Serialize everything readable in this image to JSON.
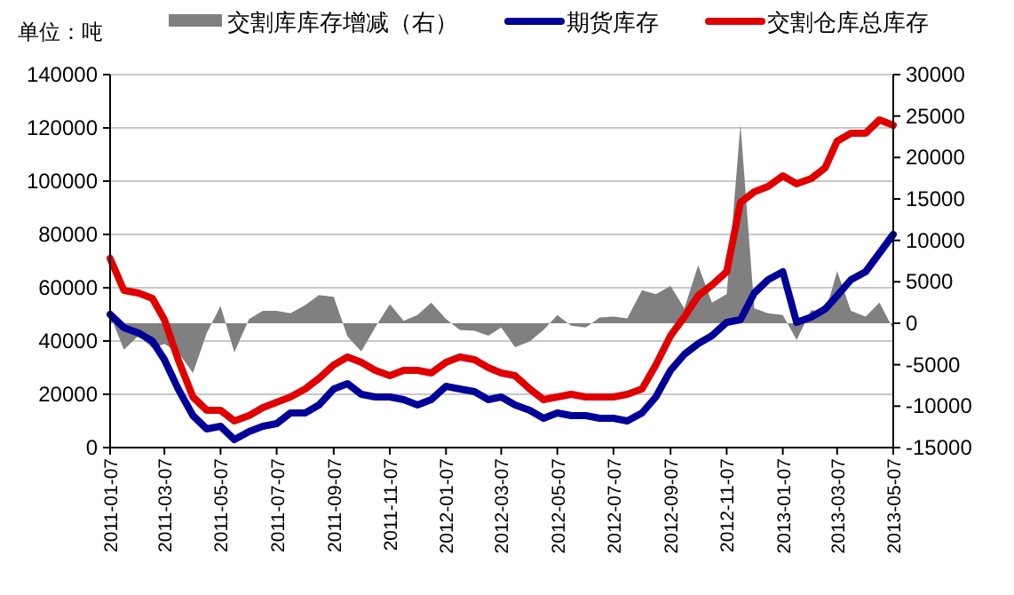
{
  "chart_data": {
    "type": "line",
    "ylabel": "单位：吨",
    "legend": "top",
    "grid": "y",
    "line_style": "solid",
    "marker": "none",
    "xlim": [
      "2011-01-07",
      "2013-05-07"
    ],
    "xticks": [
      "2011-01-07",
      "2011-03-07",
      "2011-05-07",
      "2011-07-07",
      "2011-09-07",
      "2011-11-07",
      "2012-01-07",
      "2012-03-07",
      "2012-05-07",
      "2012-07-07",
      "2012-09-07",
      "2012-11-07",
      "2013-01-07",
      "2013-03-07",
      "2013-05-07"
    ],
    "ylim": [
      0,
      140000
    ],
    "yticks": [
      0,
      20000,
      40000,
      60000,
      80000,
      100000,
      120000,
      140000
    ],
    "y2lim": [
      -15000,
      30000
    ],
    "y2ticks": [
      -15000,
      -10000,
      -5000,
      0,
      5000,
      10000,
      15000,
      20000,
      25000,
      30000
    ],
    "x": [
      "2011-01-07",
      "2011-01-22",
      "2011-02-07",
      "2011-02-22",
      "2011-03-07",
      "2011-03-22",
      "2011-04-07",
      "2011-04-22",
      "2011-05-07",
      "2011-05-22",
      "2011-06-07",
      "2011-06-22",
      "2011-07-07",
      "2011-07-22",
      "2011-08-07",
      "2011-08-22",
      "2011-09-07",
      "2011-09-22",
      "2011-10-07",
      "2011-10-22",
      "2011-11-07",
      "2011-11-22",
      "2011-12-07",
      "2011-12-22",
      "2012-01-07",
      "2012-01-22",
      "2012-02-07",
      "2012-02-22",
      "2012-03-07",
      "2012-03-22",
      "2012-04-07",
      "2012-04-22",
      "2012-05-07",
      "2012-05-22",
      "2012-06-07",
      "2012-06-22",
      "2012-07-07",
      "2012-07-22",
      "2012-08-07",
      "2012-08-22",
      "2012-09-07",
      "2012-09-22",
      "2012-10-07",
      "2012-10-22",
      "2012-11-07",
      "2012-11-22",
      "2012-12-07",
      "2012-12-22",
      "2013-01-07",
      "2013-01-22",
      "2013-02-07",
      "2013-02-22",
      "2013-03-07",
      "2013-03-22",
      "2013-04-07",
      "2013-04-22",
      "2013-05-07"
    ],
    "series": [
      {
        "name": "交割库库存增减（右）",
        "type": "area",
        "axis": "y2",
        "color": "#808080",
        "values": [
          1000,
          -3200,
          -1500,
          -3000,
          -2500,
          -3500,
          -6000,
          -1200,
          2100,
          -3500,
          500,
          1500,
          1500,
          1200,
          2200,
          3400,
          3200,
          -1600,
          -3400,
          -500,
          2300,
          300,
          1000,
          2500,
          500,
          -800,
          -900,
          -1500,
          -500,
          -2900,
          -2200,
          -800,
          1000,
          -300,
          -500,
          700,
          800,
          600,
          4000,
          3500,
          4500,
          1800,
          7000,
          2500,
          3500,
          24000,
          1800,
          1200,
          1000,
          -2000,
          1600,
          1200,
          6300,
          1500,
          800,
          2500,
          -700
        ]
      },
      {
        "name": "期货库存",
        "color": "#000099",
        "values": [
          50000,
          45000,
          43000,
          40000,
          33000,
          22000,
          12000,
          7000,
          8000,
          3000,
          6000,
          8000,
          9000,
          13000,
          13000,
          16000,
          22000,
          24000,
          20000,
          19000,
          19000,
          18000,
          16000,
          18000,
          23000,
          22000,
          21000,
          18000,
          19000,
          16000,
          14000,
          11000,
          13000,
          12000,
          12000,
          11000,
          11000,
          10000,
          13000,
          19000,
          29000,
          35000,
          39000,
          42000,
          47000,
          48000,
          58000,
          63000,
          66000,
          47000,
          49000,
          52000,
          57000,
          63000,
          66000,
          73000,
          80000
        ]
      },
      {
        "name": "交割仓库总库存",
        "color": "#e00000",
        "values": [
          71000,
          59000,
          58000,
          56000,
          48000,
          33000,
          19000,
          14000,
          14000,
          10000,
          12000,
          15000,
          17000,
          19000,
          22000,
          26000,
          31000,
          34000,
          32000,
          29000,
          27000,
          29000,
          29000,
          28000,
          32000,
          34000,
          33000,
          30000,
          28000,
          27000,
          22000,
          18000,
          19000,
          20000,
          19000,
          19000,
          19000,
          20000,
          22000,
          31000,
          42000,
          49000,
          57000,
          61000,
          66000,
          92000,
          96000,
          98000,
          102000,
          99000,
          101000,
          105000,
          115000,
          118000,
          118000,
          123000,
          121000
        ]
      }
    ]
  }
}
